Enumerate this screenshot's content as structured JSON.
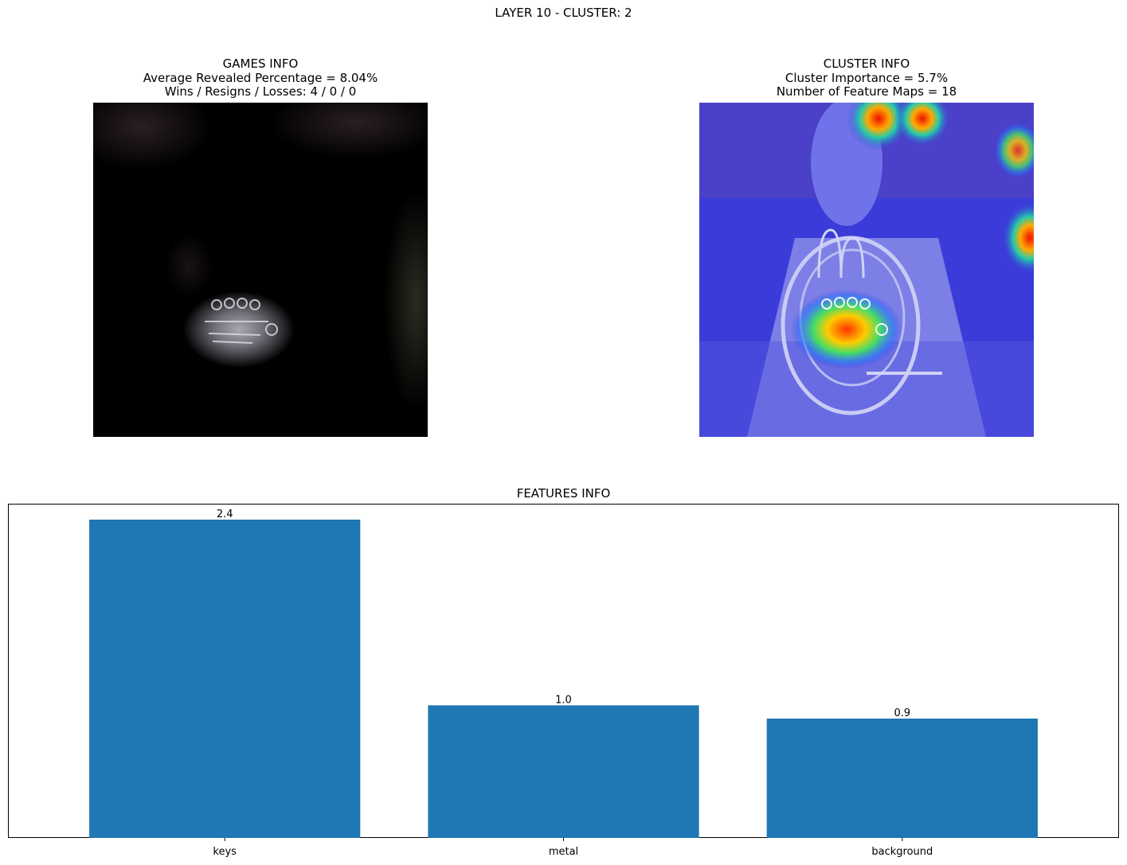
{
  "figure": {
    "suptitle": "LAYER 10 - CLUSTER: 2"
  },
  "games_info": {
    "title": "GAMES INFO",
    "line1": "Average Revealed Percentage = 8.04%",
    "line2": "Wins / Resigns / Losses: 4 / 0 / 0"
  },
  "cluster_info": {
    "title": "CLUSTER INFO",
    "line1": "Cluster Importance = 5.7%",
    "line2": "Number of Feature Maps = 18"
  },
  "chart_data": {
    "type": "bar",
    "title": "FEATURES INFO",
    "categories": [
      "keys",
      "metal",
      "background"
    ],
    "values": [
      2.4,
      1.0,
      0.9
    ],
    "value_labels": [
      "2.4",
      "1.0",
      "0.9"
    ],
    "xlabel": "",
    "ylabel": "",
    "ylim": [
      0,
      2.52
    ],
    "bar_color": "#1f77b4",
    "grid": false,
    "yaxis_visible": false
  }
}
